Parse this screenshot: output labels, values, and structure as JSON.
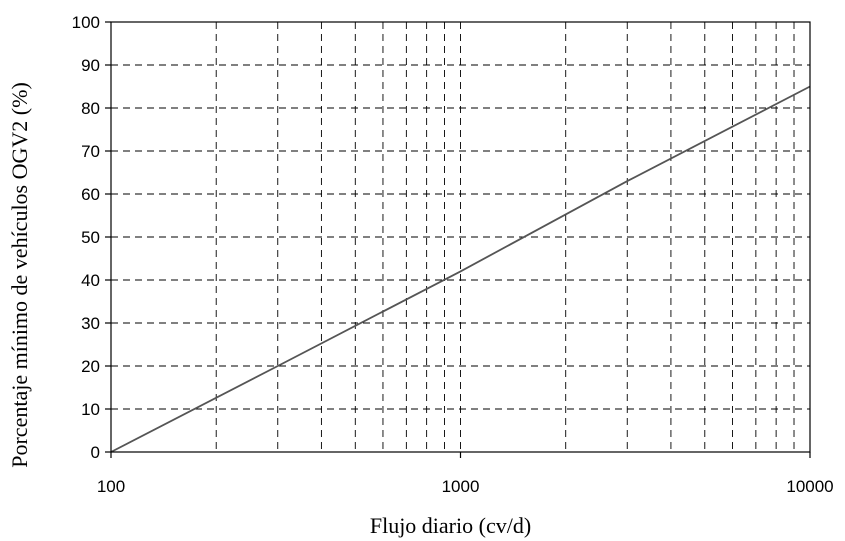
{
  "chart_data": {
    "type": "line",
    "xlabel": "Flujo diario (cv/d)",
    "ylabel": "Porcentaje mínimo de vehículos OGV2 (%)",
    "x_scale": "log",
    "xlim": [
      100,
      10000
    ],
    "ylim": [
      0,
      100
    ],
    "x_ticks": [
      100,
      1000,
      10000
    ],
    "x_tick_labels": [
      "100",
      "1000",
      "10000"
    ],
    "x_minor_gridlines": [
      200,
      300,
      400,
      500,
      600,
      700,
      800,
      900,
      2000,
      3000,
      4000,
      5000,
      6000,
      7000,
      8000,
      9000
    ],
    "y_ticks": [
      0,
      10,
      20,
      30,
      40,
      50,
      60,
      70,
      80,
      90,
      100
    ],
    "y_tick_labels": [
      "0",
      "10",
      "20",
      "30",
      "40",
      "50",
      "60",
      "70",
      "80",
      "90",
      "100"
    ],
    "grid": true,
    "legend": "none",
    "series": [
      {
        "color": "#555555",
        "x": [
          100,
          300,
          1000,
          3000,
          10000
        ],
        "y": [
          0,
          20,
          42,
          63,
          85
        ]
      }
    ]
  }
}
